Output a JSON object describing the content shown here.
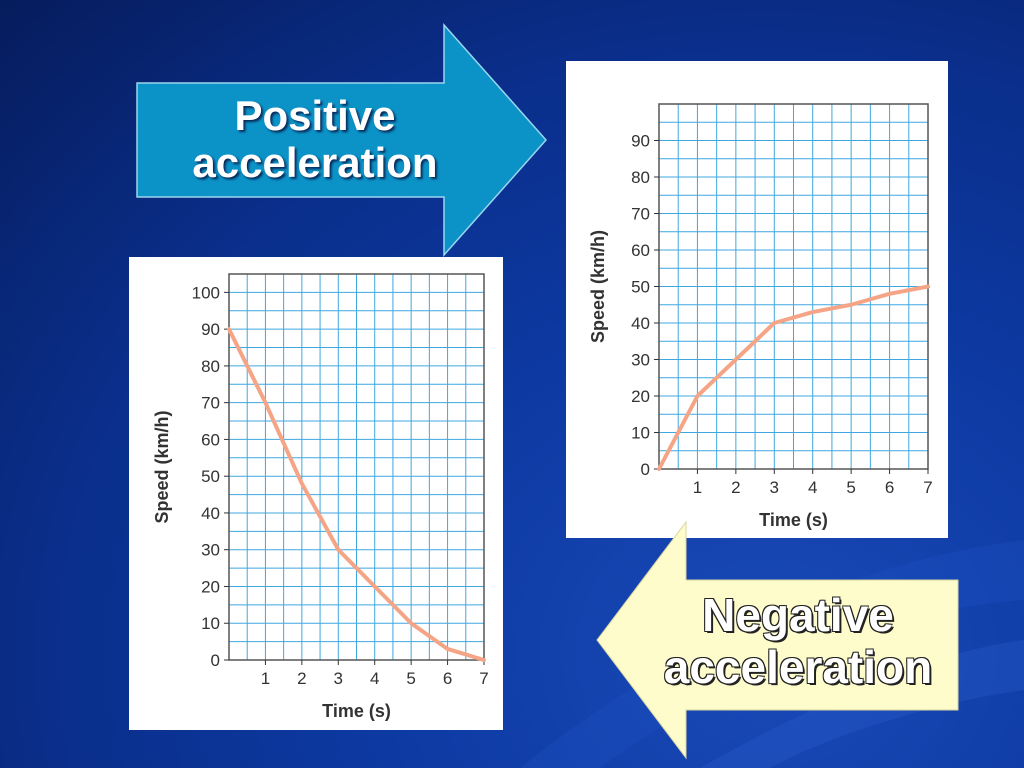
{
  "arrows": {
    "positive": {
      "line1": "Positive",
      "line2": "acceleration",
      "fill": "#0b92c6"
    },
    "negative": {
      "line1": "Negative",
      "line2": "acceleration",
      "fill": "#fffccc"
    }
  },
  "colors": {
    "background": "#0a2f8c",
    "grid": "#3fa7e0",
    "line": "#f5a586",
    "frame": "#555555"
  },
  "chart_data": [
    {
      "type": "line",
      "name": "positive-acceleration-graph",
      "title": "",
      "xlabel": "Time (s)",
      "ylabel": "Speed (km/h)",
      "xlim": [
        0,
        7
      ],
      "ylim": [
        0,
        100
      ],
      "xticks": [
        "1",
        "2",
        "3",
        "4",
        "5",
        "6",
        "7"
      ],
      "yticks": [
        "0",
        "10",
        "20",
        "30",
        "40",
        "50",
        "60",
        "70",
        "80",
        "90"
      ],
      "grid": true,
      "series": [
        {
          "x": [
            0,
            1,
            2,
            3,
            4,
            5,
            6,
            7
          ],
          "y": [
            0,
            20,
            30,
            40,
            43,
            45,
            48,
            50
          ]
        }
      ]
    },
    {
      "type": "line",
      "name": "negative-acceleration-graph",
      "title": "",
      "xlabel": "Time (s)",
      "ylabel": "Speed (km/h)",
      "xlim": [
        0,
        7
      ],
      "ylim": [
        0,
        105
      ],
      "xticks": [
        "1",
        "2",
        "3",
        "4",
        "5",
        "6",
        "7"
      ],
      "yticks": [
        "0",
        "10",
        "20",
        "30",
        "40",
        "50",
        "60",
        "70",
        "80",
        "90",
        "100"
      ],
      "grid": true,
      "series": [
        {
          "x": [
            0,
            1,
            2,
            3,
            4,
            5,
            6,
            7
          ],
          "y": [
            90,
            70,
            48,
            30,
            20,
            10,
            3,
            0
          ]
        }
      ]
    }
  ]
}
